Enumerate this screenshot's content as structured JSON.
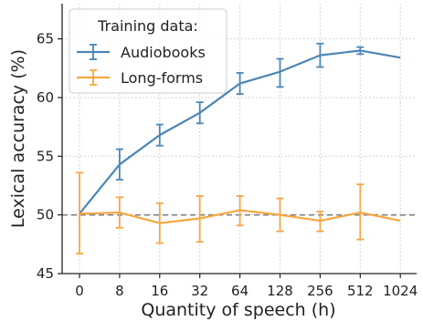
{
  "chart_data": {
    "type": "line",
    "title": "",
    "xlabel": "Quantity of speech (h)",
    "ylabel": "Lexical accuracy (%)",
    "categories": [
      "0",
      "8",
      "16",
      "32",
      "64",
      "128",
      "256",
      "512",
      "1024"
    ],
    "ylim": [
      45,
      68
    ],
    "yticks": [
      45,
      50,
      55,
      60,
      65
    ],
    "grid": true,
    "legend": {
      "title": "Training data:",
      "placement": "top-left"
    },
    "reference_line": {
      "y": 50,
      "style": "dashed",
      "color": "#808080"
    },
    "series": [
      {
        "name": "Audiobooks",
        "color": "#4a86b8",
        "values": [
          50.1,
          54.3,
          56.8,
          58.7,
          61.2,
          62.2,
          63.6,
          64.0,
          63.4
        ],
        "err_low": [
          50.1,
          53.0,
          55.9,
          57.8,
          60.3,
          60.9,
          62.6,
          63.7,
          null
        ],
        "err_high": [
          50.1,
          55.6,
          57.7,
          59.6,
          62.1,
          63.3,
          64.6,
          64.3,
          null
        ]
      },
      {
        "name": "Long-forms",
        "color": "#f5a742",
        "values": [
          50.1,
          50.2,
          49.3,
          49.7,
          50.4,
          50.0,
          49.5,
          50.2,
          49.5
        ],
        "err_low": [
          46.7,
          48.9,
          47.6,
          47.7,
          49.1,
          48.6,
          48.6,
          47.9,
          null
        ],
        "err_high": [
          53.6,
          51.5,
          51.0,
          51.6,
          51.6,
          51.4,
          50.3,
          52.6,
          null
        ]
      }
    ]
  }
}
